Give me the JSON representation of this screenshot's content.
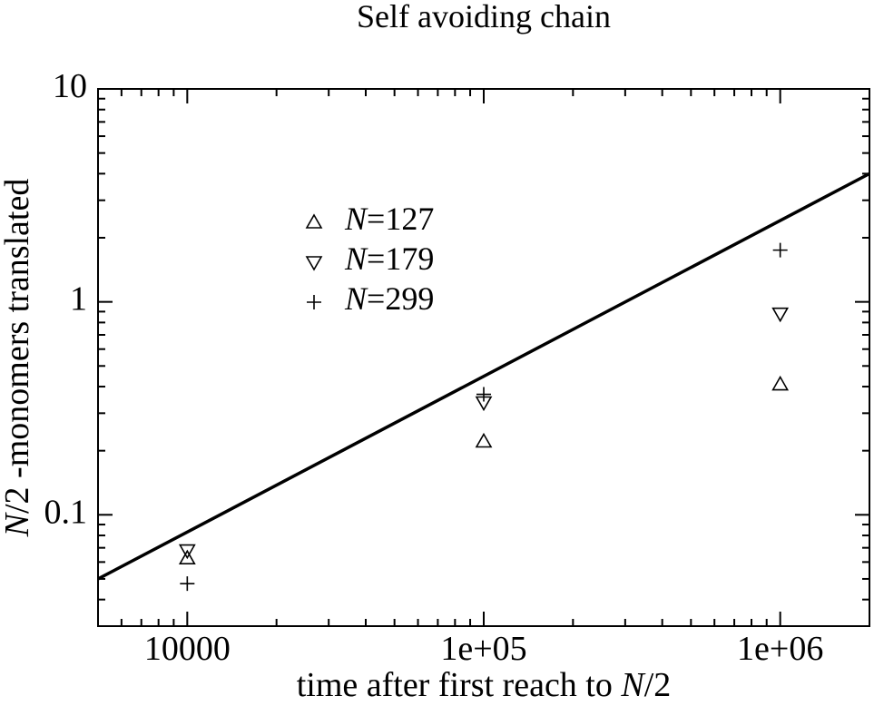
{
  "chart_data": {
    "type": "scatter",
    "title": "Self avoiding chain",
    "xlabel": "time after first reach to N/2",
    "ylabel": "N/2 -monomers translated",
    "xscale": "log",
    "yscale": "log",
    "xlim": [
      5000,
      2000000
    ],
    "ylim": [
      0.03,
      10
    ],
    "xticks": [
      10000,
      {
        "value": 100000,
        "label": "1e+05"
      },
      {
        "value": 1000000,
        "label": "1e+06"
      }
    ],
    "yticks": [
      0.1,
      1,
      10
    ],
    "x": [
      10000,
      100000,
      1000000
    ],
    "series": [
      {
        "name": "N=127",
        "marker": "triangle-up",
        "color": "#000000",
        "values": [
          0.0625,
          0.221,
          0.41
        ]
      },
      {
        "name": "N=179",
        "marker": "triangle-down",
        "color": "#000000",
        "values": [
          0.068,
          0.337,
          0.88
        ]
      },
      {
        "name": "N=299",
        "marker": "plus",
        "color": "#000000",
        "values": [
          0.0475,
          0.368,
          1.75
        ]
      }
    ],
    "fit": {
      "x": [
        5000,
        2000000
      ],
      "values": [
        0.05,
        4
      ],
      "color": "#000000"
    }
  }
}
